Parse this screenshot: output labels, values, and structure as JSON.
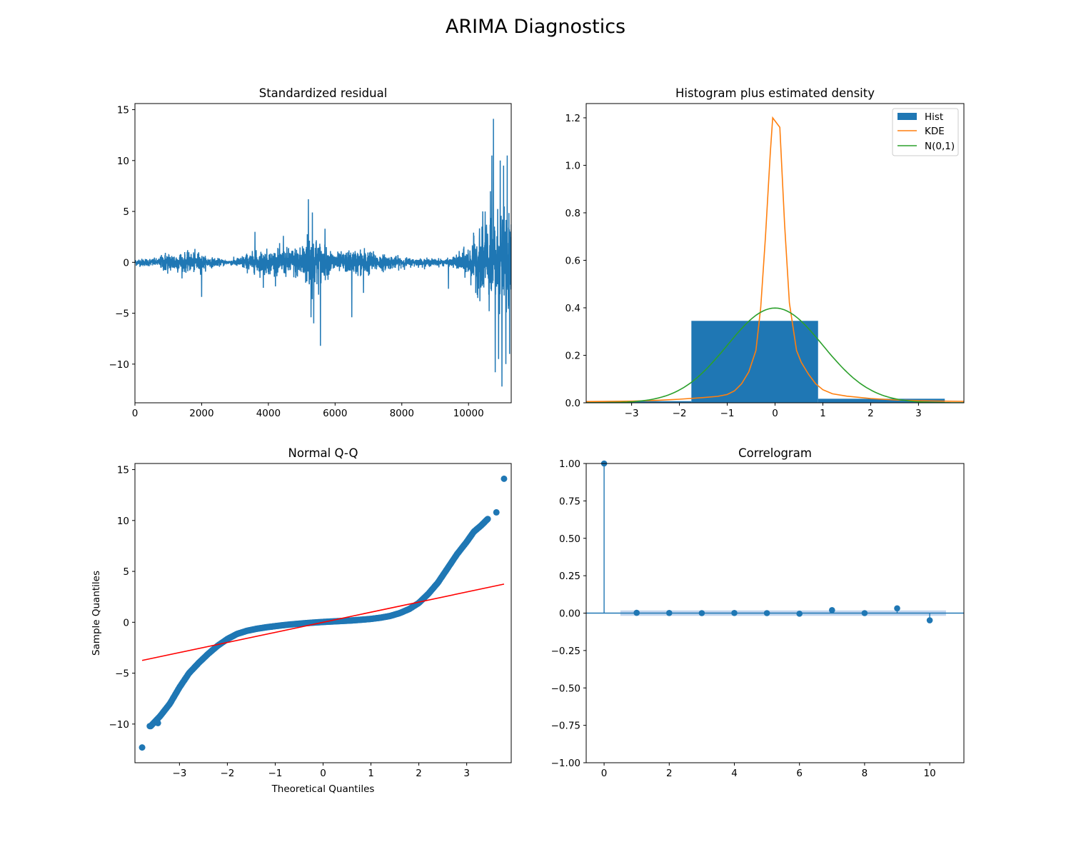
{
  "title": "ARIMA Diagnostics",
  "colors": {
    "blue": "#1f77b4",
    "orange": "#ff7f0e",
    "green": "#2ca02c",
    "red": "#ff0000",
    "band": "#aec7e8"
  },
  "chart_data": [
    {
      "id": "residual",
      "type": "line",
      "title": "Standardized residual",
      "xlabel": "",
      "ylabel": "",
      "xlim": [
        0,
        11280
      ],
      "ylim": [
        -13.8,
        15.6
      ],
      "xticks": [
        0,
        2000,
        4000,
        6000,
        8000,
        10000
      ],
      "xtick_labels": [
        "0",
        "2000",
        "4000",
        "6000",
        "8000",
        "10000"
      ],
      "yticks": [
        15,
        10,
        5,
        0,
        -5,
        -10
      ],
      "ytick_labels": [
        "15",
        "10",
        "5",
        "0",
        "−5",
        "−10"
      ],
      "grid": false,
      "volatility_profile": [
        [
          0,
          0.3
        ],
        [
          700,
          0.35
        ],
        [
          900,
          0.9
        ],
        [
          1600,
          0.8
        ],
        [
          1900,
          0.9
        ],
        [
          2100,
          0.5
        ],
        [
          2800,
          0.2
        ],
        [
          3100,
          0.4
        ],
        [
          3300,
          0.7
        ],
        [
          3800,
          1.0
        ],
        [
          4400,
          1.1
        ],
        [
          4800,
          1.3
        ],
        [
          5000,
          1.6
        ],
        [
          5200,
          2.5
        ],
        [
          5500,
          2.0
        ],
        [
          5700,
          1.3
        ],
        [
          6100,
          0.8
        ],
        [
          6500,
          1.0
        ],
        [
          6900,
          1.2
        ],
        [
          7200,
          0.8
        ],
        [
          7600,
          0.6
        ],
        [
          8300,
          0.35
        ],
        [
          9400,
          0.3
        ],
        [
          9700,
          0.7
        ],
        [
          10000,
          1.4
        ],
        [
          10300,
          2.5
        ],
        [
          10500,
          3.5
        ],
        [
          10700,
          4.5
        ],
        [
          11000,
          4.0
        ],
        [
          11280,
          4.0
        ]
      ],
      "spikes": [
        [
          2000,
          -3.4
        ],
        [
          3600,
          3.0
        ],
        [
          3850,
          -2.5
        ],
        [
          4450,
          2.6
        ],
        [
          5200,
          6.2
        ],
        [
          5280,
          -5.4
        ],
        [
          5320,
          4.9
        ],
        [
          5360,
          -6.0
        ],
        [
          5560,
          -8.2
        ],
        [
          5700,
          3.3
        ],
        [
          6500,
          -5.4
        ],
        [
          6850,
          -3.0
        ],
        [
          9400,
          -2.6
        ],
        [
          10400,
          3.5
        ],
        [
          10500,
          5.0
        ],
        [
          10700,
          10.5
        ],
        [
          10750,
          14.1
        ],
        [
          10800,
          -10.8
        ],
        [
          10900,
          -9.5
        ],
        [
          10950,
          10.0
        ],
        [
          11000,
          -12.2
        ],
        [
          11050,
          9.5
        ],
        [
          11120,
          -10.0
        ],
        [
          11160,
          10.5
        ],
        [
          11230,
          -9.0
        ]
      ]
    },
    {
      "id": "histogram",
      "type": "bar",
      "title": "Histogram plus estimated density",
      "xlim": [
        -3.95,
        3.95
      ],
      "ylim": [
        0,
        1.26
      ],
      "xticks": [
        -3,
        -2,
        -1,
        0,
        1,
        2,
        3
      ],
      "xtick_labels": [
        "−3",
        "−2",
        "−1",
        "0",
        "1",
        "2",
        "3"
      ],
      "yticks": [
        0.0,
        0.2,
        0.4,
        0.6,
        0.8,
        1.0,
        1.2
      ],
      "ytick_labels": [
        "0.0",
        "0.2",
        "0.4",
        "0.6",
        "0.8",
        "1.0",
        "1.2"
      ],
      "legend_position": "top-right",
      "legend": [
        "Hist",
        "KDE",
        "N(0,1)"
      ],
      "bins": [
        {
          "x0": -4.4,
          "x1": -1.75,
          "value": 0.007
        },
        {
          "x0": -1.75,
          "x1": 0.9,
          "value": 0.345
        },
        {
          "x0": 0.9,
          "x1": 3.55,
          "value": 0.017
        }
      ],
      "kde": {
        "x": [
          -3.95,
          -3.0,
          -2.5,
          -2.0,
          -1.5,
          -1.2,
          -1.0,
          -0.85,
          -0.7,
          -0.55,
          -0.4,
          -0.3,
          -0.2,
          -0.1,
          -0.05,
          0.1,
          0.2,
          0.3,
          0.45,
          0.55,
          0.7,
          0.85,
          1.0,
          1.2,
          1.5,
          2.0,
          2.5,
          3.0,
          3.5,
          3.95
        ],
        "y": [
          0.005,
          0.007,
          0.01,
          0.015,
          0.022,
          0.027,
          0.035,
          0.05,
          0.08,
          0.13,
          0.22,
          0.4,
          0.7,
          1.05,
          1.2,
          1.16,
          0.75,
          0.42,
          0.22,
          0.17,
          0.12,
          0.08,
          0.055,
          0.038,
          0.028,
          0.018,
          0.012,
          0.009,
          0.007,
          0.006
        ]
      },
      "normal": {
        "mean": 0,
        "sd": 1
      }
    },
    {
      "id": "qq",
      "type": "scatter",
      "title": "Normal Q-Q",
      "xlabel": "Theoretical Quantiles",
      "ylabel": "Sample Quantiles",
      "xlim": [
        -3.93,
        3.93
      ],
      "ylim": [
        -13.8,
        15.6
      ],
      "xticks": [
        -3,
        -2,
        -1,
        0,
        1,
        2,
        3
      ],
      "xtick_labels": [
        "−3",
        "−2",
        "−1",
        "0",
        "1",
        "2",
        "3"
      ],
      "yticks": [
        15,
        10,
        5,
        0,
        -5,
        -10
      ],
      "ytick_labels": [
        "15",
        "10",
        "5",
        "0",
        "−5",
        "−10"
      ],
      "curve": [
        [
          -3.6,
          -10.2
        ],
        [
          -3.4,
          -9.2
        ],
        [
          -3.2,
          -8.0
        ],
        [
          -3.0,
          -6.4
        ],
        [
          -2.8,
          -5.0
        ],
        [
          -2.6,
          -4.0
        ],
        [
          -2.4,
          -3.1
        ],
        [
          -2.2,
          -2.3
        ],
        [
          -2.0,
          -1.65
        ],
        [
          -1.8,
          -1.15
        ],
        [
          -1.6,
          -0.85
        ],
        [
          -1.4,
          -0.65
        ],
        [
          -1.2,
          -0.5
        ],
        [
          -1.0,
          -0.38
        ],
        [
          -0.8,
          -0.27
        ],
        [
          -0.6,
          -0.18
        ],
        [
          -0.4,
          -0.1
        ],
        [
          -0.2,
          -0.03
        ],
        [
          0.0,
          0.03
        ],
        [
          0.2,
          0.08
        ],
        [
          0.4,
          0.13
        ],
        [
          0.6,
          0.18
        ],
        [
          0.8,
          0.25
        ],
        [
          1.0,
          0.33
        ],
        [
          1.2,
          0.45
        ],
        [
          1.4,
          0.62
        ],
        [
          1.6,
          0.9
        ],
        [
          1.8,
          1.3
        ],
        [
          2.0,
          1.9
        ],
        [
          2.2,
          2.8
        ],
        [
          2.4,
          3.9
        ],
        [
          2.6,
          5.3
        ],
        [
          2.8,
          6.7
        ],
        [
          3.0,
          7.9
        ],
        [
          3.15,
          8.9
        ],
        [
          3.3,
          9.5
        ],
        [
          3.45,
          10.2
        ]
      ],
      "outliers": [
        [
          -3.78,
          -12.3
        ],
        [
          -3.62,
          -10.2
        ],
        [
          -3.45,
          -9.9
        ],
        [
          3.62,
          10.8
        ],
        [
          3.78,
          14.1
        ]
      ],
      "reference_line": [
        [
          -3.78,
          -3.75
        ],
        [
          3.78,
          3.75
        ]
      ]
    },
    {
      "id": "correlogram",
      "type": "scatter",
      "title": "Correlogram",
      "xlim": [
        -0.55,
        11.05
      ],
      "ylim": [
        -1.0,
        1.0
      ],
      "xticks": [
        0,
        2,
        4,
        6,
        8,
        10
      ],
      "xtick_labels": [
        "0",
        "2",
        "4",
        "6",
        "8",
        "10"
      ],
      "yticks": [
        1.0,
        0.75,
        0.5,
        0.25,
        0.0,
        -0.25,
        -0.5,
        -0.75,
        -1.0
      ],
      "ytick_labels": [
        "1.00",
        "0.75",
        "0.50",
        "0.25",
        "0.00",
        "−0.25",
        "−0.50",
        "−0.75",
        "−1.00"
      ],
      "lags": [
        0,
        1,
        2,
        3,
        4,
        5,
        6,
        7,
        8,
        9,
        10
      ],
      "acf": [
        1.0,
        0.002,
        0.001,
        0.0,
        0.001,
        0.0,
        -0.004,
        0.02,
        0.0,
        0.032,
        -0.048
      ],
      "confidence_band": [
        -0.018,
        0.018
      ],
      "band_range": [
        0.5,
        10.5
      ]
    }
  ]
}
